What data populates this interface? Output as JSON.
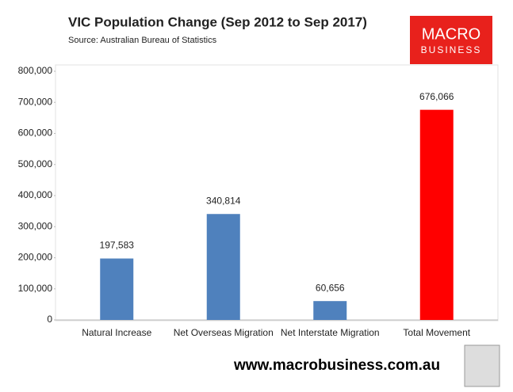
{
  "chart_data": {
    "type": "bar",
    "title": "VIC Population Change (Sep 2012 to Sep 2017)",
    "subtitle": "Source: Australian Bureau of Statistics",
    "logo": [
      "MACRO",
      "BUSINESS"
    ],
    "footer": "www.macrobusiness.com.au",
    "categories": [
      "Natural Increase",
      "Net Overseas Migration",
      "Net Interstate Migration",
      "Total Movement"
    ],
    "values": [
      197583,
      340814,
      60656,
      676066
    ],
    "value_labels": [
      "197,583",
      "340,814",
      "60,656",
      "676,066"
    ],
    "colors": [
      "#4f81bd",
      "#4f81bd",
      "#4f81bd",
      "#ff0000"
    ],
    "ylim": [
      0,
      800000
    ],
    "yticks": [
      0,
      {
        "value": 100000,
        "label": "100,000"
      },
      {
        "value": 200000,
        "label": "200,000"
      },
      {
        "value": 300000,
        "label": "300,000"
      },
      {
        "value": 400000,
        "label": "400,000"
      },
      {
        "value": 500000,
        "label": "500,000"
      },
      {
        "value": 600000,
        "label": "600,000"
      },
      {
        "value": 700000,
        "label": "700,000"
      },
      {
        "value": 800000,
        "label": "800,000"
      }
    ],
    "grid": false
  }
}
